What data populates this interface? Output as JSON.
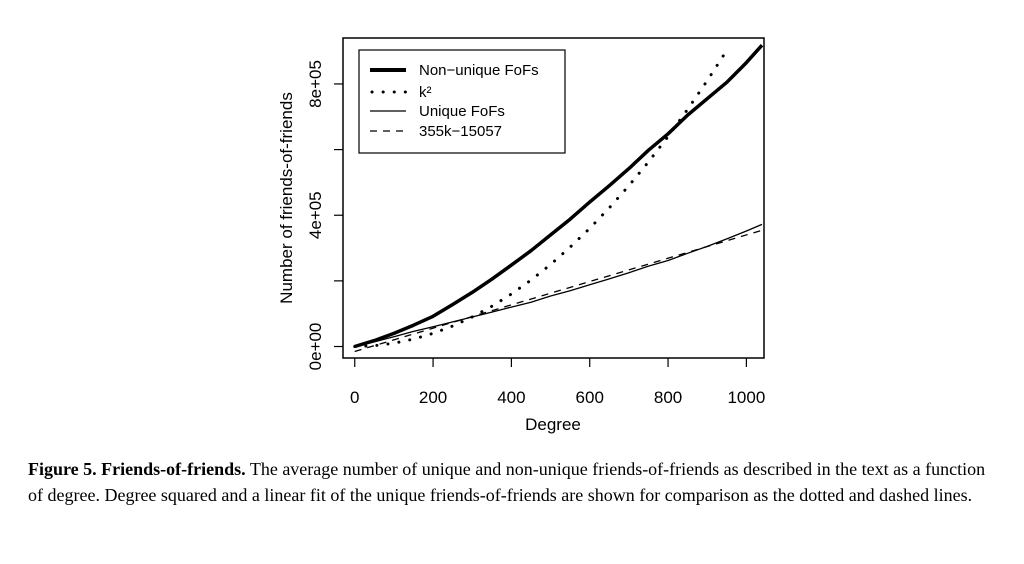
{
  "chart_data": {
    "type": "line",
    "xlabel": "Degree",
    "ylabel": "Number of friends-of-friends",
    "xlim": [
      -30,
      1045
    ],
    "ylim": [
      -35000,
      940000
    ],
    "xticks": [
      0,
      200,
      400,
      600,
      800,
      1000
    ],
    "xtick_labels": [
      "0",
      "200",
      "400",
      "600",
      "800",
      "1000"
    ],
    "yticks": [
      0,
      200000,
      400000,
      600000,
      800000
    ],
    "ytick_labels": [
      "0e+00",
      "",
      "4e+05",
      "",
      "8e+05"
    ],
    "legend_position": "top-left",
    "grid": false,
    "series": [
      {
        "name": "Non−unique FoFs",
        "style": "thick-solid",
        "x": [
          0,
          50,
          100,
          150,
          200,
          250,
          300,
          350,
          400,
          450,
          500,
          550,
          600,
          650,
          700,
          750,
          800,
          850,
          900,
          950,
          1000,
          1040
        ],
        "y": [
          0,
          18000,
          40000,
          65000,
          92000,
          128000,
          165000,
          205000,
          248000,
          292000,
          340000,
          388000,
          440000,
          490000,
          542000,
          598000,
          648000,
          705000,
          755000,
          805000,
          865000,
          918000
        ]
      },
      {
        "name": "k²",
        "style": "dotted",
        "x": [
          0,
          50,
          100,
          150,
          200,
          250,
          300,
          350,
          400,
          450,
          500,
          550,
          600,
          650,
          700,
          750,
          800,
          850,
          900,
          950
        ],
        "y": [
          0,
          2500,
          10000,
          22500,
          40000,
          62500,
          90000,
          122500,
          160000,
          202500,
          250000,
          302500,
          360000,
          422500,
          490000,
          562500,
          640000,
          722500,
          810000,
          902500
        ]
      },
      {
        "name": "Unique FoFs",
        "style": "solid",
        "x": [
          0,
          50,
          100,
          150,
          200,
          250,
          300,
          350,
          400,
          450,
          500,
          550,
          600,
          650,
          700,
          750,
          800,
          850,
          900,
          950,
          1000,
          1040
        ],
        "y": [
          0,
          14000,
          30000,
          46000,
          60000,
          75000,
          90000,
          105000,
          120000,
          135000,
          154000,
          170000,
          188000,
          206000,
          225000,
          245000,
          262000,
          284000,
          305000,
          328000,
          352000,
          372000
        ]
      },
      {
        "name": "355k−15057",
        "style": "dashed",
        "x": [
          0,
          1040
        ],
        "y": [
          -15057,
          354143
        ]
      }
    ]
  },
  "caption": {
    "bold": "Figure 5. Friends-of-friends.",
    "text": " The average number of unique and non-unique friends-of-friends as described in the text as a function of degree. Degree squared and a linear fit of the unique friends-of-friends are shown for comparison as the dotted and dashed lines."
  }
}
